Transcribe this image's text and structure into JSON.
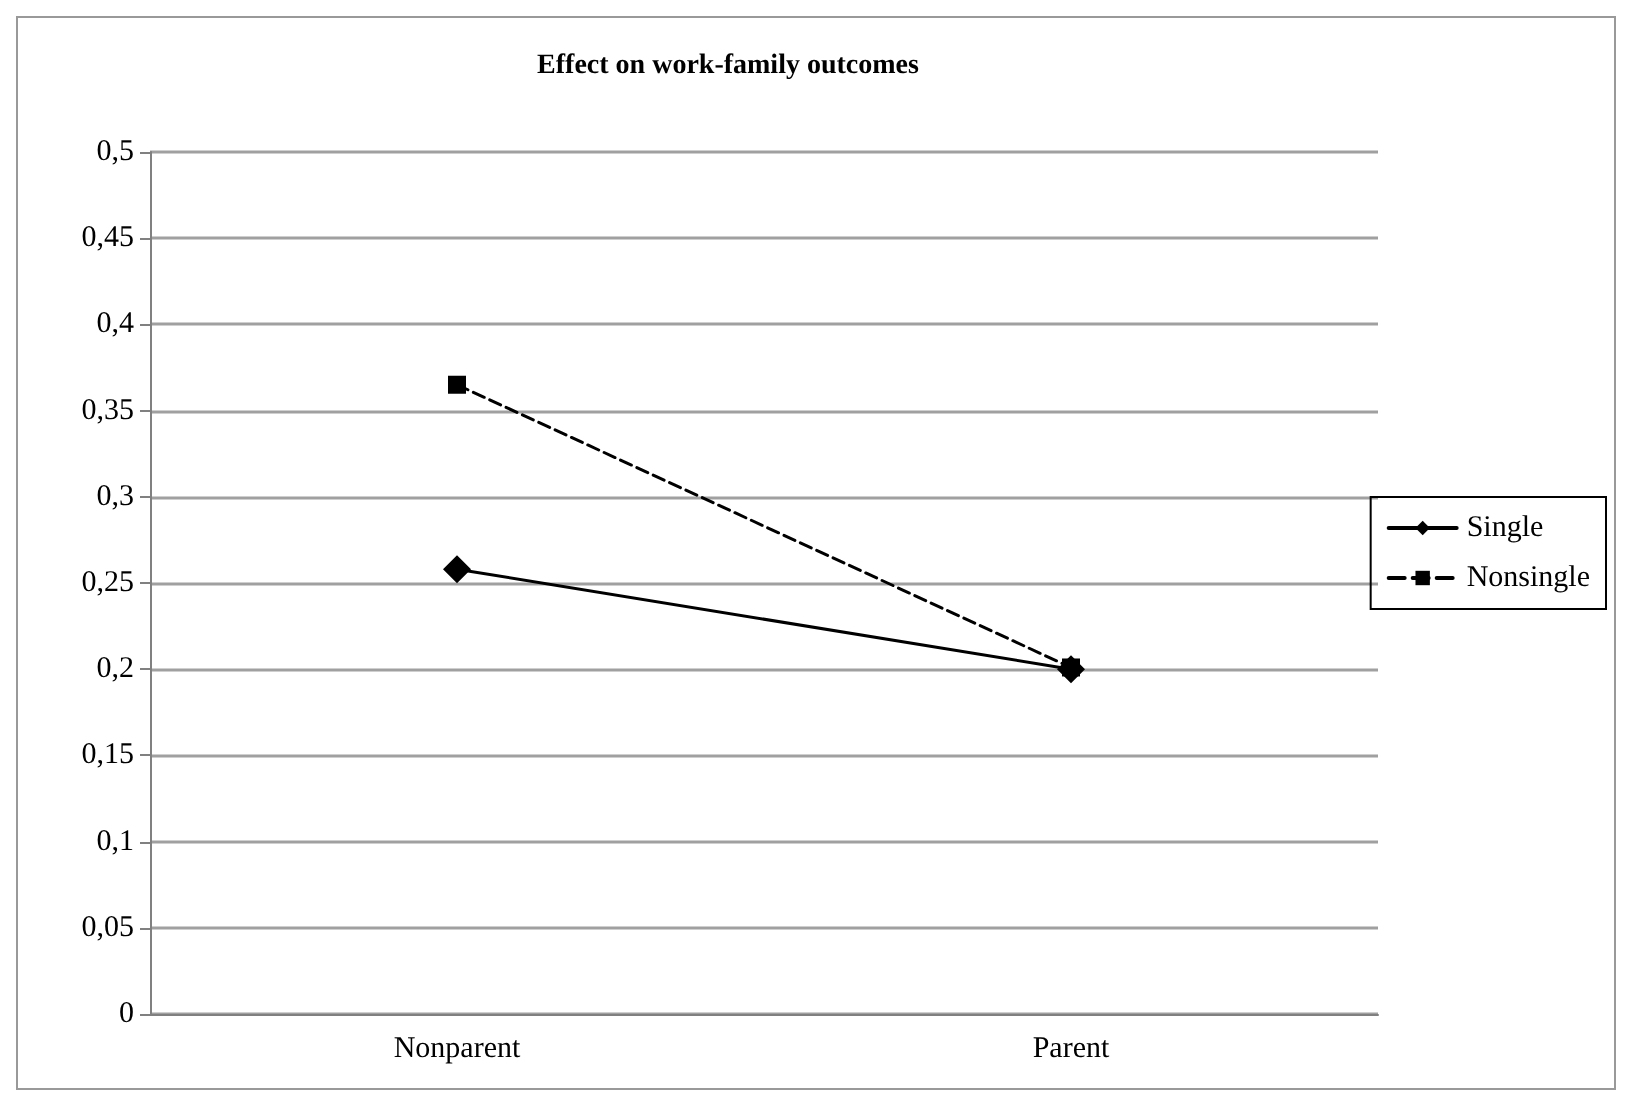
{
  "chart_data": {
    "type": "line",
    "title": "Effect on work-family outcomes",
    "categories": [
      "Nonparent",
      "Parent"
    ],
    "series": [
      {
        "name": "Single",
        "color": "#000000",
        "values": [
          0.258,
          0.2
        ],
        "marker": "diamond",
        "line_style": "solid"
      },
      {
        "name": "Nonsingle",
        "color": "#000000",
        "values": [
          0.365,
          0.201
        ],
        "marker": "square",
        "line_style": "dashed"
      }
    ],
    "ylim": [
      0,
      0.5
    ],
    "yticks": [
      {
        "value": 0,
        "label": "0"
      },
      {
        "value": 0.05,
        "label": "0,05"
      },
      {
        "value": 0.1,
        "label": "0,1"
      },
      {
        "value": 0.15,
        "label": "0,15"
      },
      {
        "value": 0.2,
        "label": "0,2"
      },
      {
        "value": 0.25,
        "label": "0,25"
      },
      {
        "value": 0.3,
        "label": "0,3"
      },
      {
        "value": 0.35,
        "label": "0,35"
      },
      {
        "value": 0.4,
        "label": "0,4"
      },
      {
        "value": 0.45,
        "label": "0,45"
      },
      {
        "value": 0.5,
        "label": "0,5"
      }
    ],
    "grid": "y",
    "legend": "right"
  }
}
